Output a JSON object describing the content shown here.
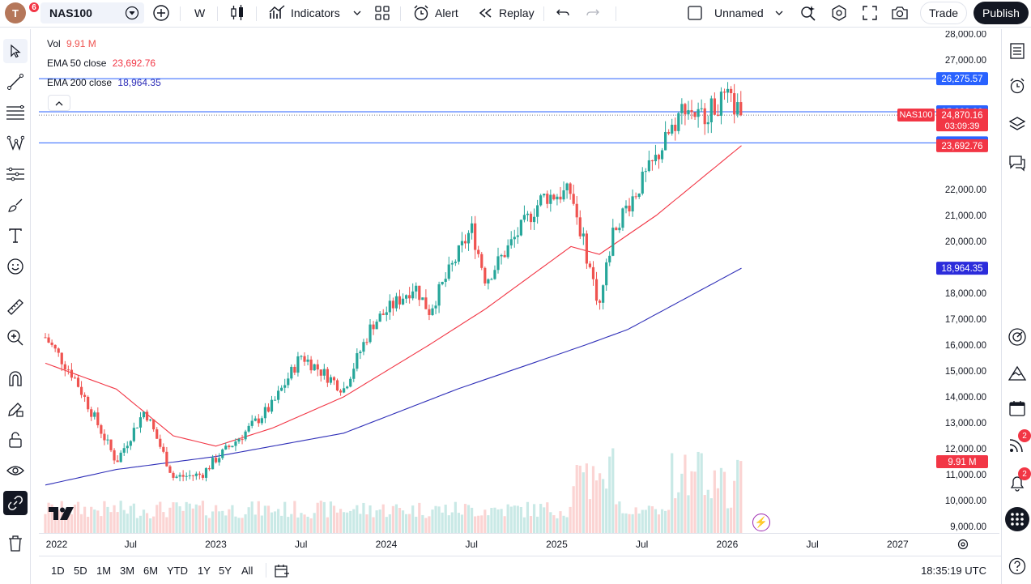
{
  "header": {
    "avatar_letter": "T",
    "avatar_badge": "6",
    "symbol": "NAS100",
    "interval": "W",
    "indicators_label": "Indicators",
    "alert_label": "Alert",
    "replay_label": "Replay",
    "layout_name": "Unnamed",
    "trade_label": "Trade",
    "publish_label": "Publish"
  },
  "legend": {
    "vol_label": "Vol",
    "vol_value": "9.91 M",
    "ema50_label": "EMA 50 close",
    "ema50_value": "23,692.76",
    "ema200_label": "EMA 200 close",
    "ema200_value": "18,964.35"
  },
  "colors": {
    "up": "#26a69a",
    "down": "#ef5350",
    "ema50": "#f23645",
    "ema200": "#2f2fb8",
    "hline": "#2962ff",
    "ema200_label_bg": "#2c2cdb"
  },
  "price_axis": {
    "ticks": [
      "28,000.00",
      "27,000.00",
      "25,000.00",
      "22,000.00",
      "21,000.00",
      "20,000.00",
      "18,000.00",
      "17,000.00",
      "16,000.00",
      "15,000.00",
      "14,000.00",
      "13,000.00",
      "12,000.00",
      "11,000.00",
      "10,000.00",
      "9,000.00"
    ],
    "labels": {
      "h1": "26,275.57",
      "h2": "25,000.00",
      "last": "24,870.16",
      "countdown": "03:09:39",
      "h3": "23,800.00",
      "ema50": "23,692.76",
      "ema200": "18,964.35",
      "vol": "9.91 M"
    },
    "symbol_tag": "NAS100"
  },
  "time_axis": {
    "labels": [
      "2022",
      "Jul",
      "2023",
      "Jul",
      "2024",
      "Jul",
      "2025",
      "Jul",
      "2026",
      "Jul",
      "2027"
    ]
  },
  "bottom": {
    "ranges": [
      "1D",
      "5D",
      "1M",
      "3M",
      "6M",
      "YTD",
      "1Y",
      "5Y",
      "All"
    ],
    "clock": "18:35:19 UTC"
  },
  "right_badges": {
    "feed": "2",
    "alerts": "2"
  },
  "chart_data": {
    "type": "candlestick",
    "symbol": "NAS100",
    "interval": "W",
    "ylim": [
      9000,
      28000
    ],
    "x_range": [
      "2022-01",
      "2027-01"
    ],
    "horizontal_lines": [
      26275.57,
      25000.0,
      23800.0
    ],
    "last_price": 24870.16,
    "ema50_last": 23692.76,
    "ema200_last": 18964.35,
    "volume_last": "9.91 M",
    "path_anchors": [
      {
        "t": "2022-01",
        "v": 16300
      },
      {
        "t": "2022-03",
        "v": 14800
      },
      {
        "t": "2022-05",
        "v": 12600
      },
      {
        "t": "2022-06",
        "v": 11500
      },
      {
        "t": "2022-08",
        "v": 13500
      },
      {
        "t": "2022-10",
        "v": 10900
      },
      {
        "t": "2022-12",
        "v": 11000
      },
      {
        "t": "2023-01",
        "v": 11600
      },
      {
        "t": "2023-03",
        "v": 12600
      },
      {
        "t": "2023-05",
        "v": 13700
      },
      {
        "t": "2023-07",
        "v": 15600
      },
      {
        "t": "2023-10",
        "v": 14300
      },
      {
        "t": "2023-12",
        "v": 16800
      },
      {
        "t": "2024-03",
        "v": 18300
      },
      {
        "t": "2024-04",
        "v": 17300
      },
      {
        "t": "2024-07",
        "v": 20500
      },
      {
        "t": "2024-08",
        "v": 18500
      },
      {
        "t": "2024-12",
        "v": 21700
      },
      {
        "t": "2025-02",
        "v": 21900
      },
      {
        "t": "2025-04",
        "v": 17500
      },
      {
        "t": "2025-05",
        "v": 20500
      },
      {
        "t": "2025-08",
        "v": 23200
      },
      {
        "t": "2025-10",
        "v": 25300
      },
      {
        "t": "2025-11",
        "v": 24800
      },
      {
        "t": "2026-01",
        "v": 25500
      },
      {
        "t": "2026-02",
        "v": 24870
      }
    ],
    "ema50_anchors": [
      {
        "t": "2022-01",
        "v": 15300
      },
      {
        "t": "2022-06",
        "v": 14300
      },
      {
        "t": "2022-10",
        "v": 12500
      },
      {
        "t": "2023-01",
        "v": 12100
      },
      {
        "t": "2023-05",
        "v": 12800
      },
      {
        "t": "2023-10",
        "v": 14000
      },
      {
        "t": "2024-04",
        "v": 16000
      },
      {
        "t": "2024-08",
        "v": 17400
      },
      {
        "t": "2025-02",
        "v": 19800
      },
      {
        "t": "2025-04",
        "v": 19500
      },
      {
        "t": "2025-08",
        "v": 21000
      },
      {
        "t": "2026-02",
        "v": 23692.76
      }
    ],
    "ema200_anchors": [
      {
        "t": "2022-01",
        "v": 10600
      },
      {
        "t": "2022-06",
        "v": 11200
      },
      {
        "t": "2023-01",
        "v": 11700
      },
      {
        "t": "2023-10",
        "v": 12600
      },
      {
        "t": "2024-06",
        "v": 14300
      },
      {
        "t": "2025-03",
        "v": 16000
      },
      {
        "t": "2025-06",
        "v": 16600
      },
      {
        "t": "2026-02",
        "v": 18964.35
      }
    ]
  }
}
